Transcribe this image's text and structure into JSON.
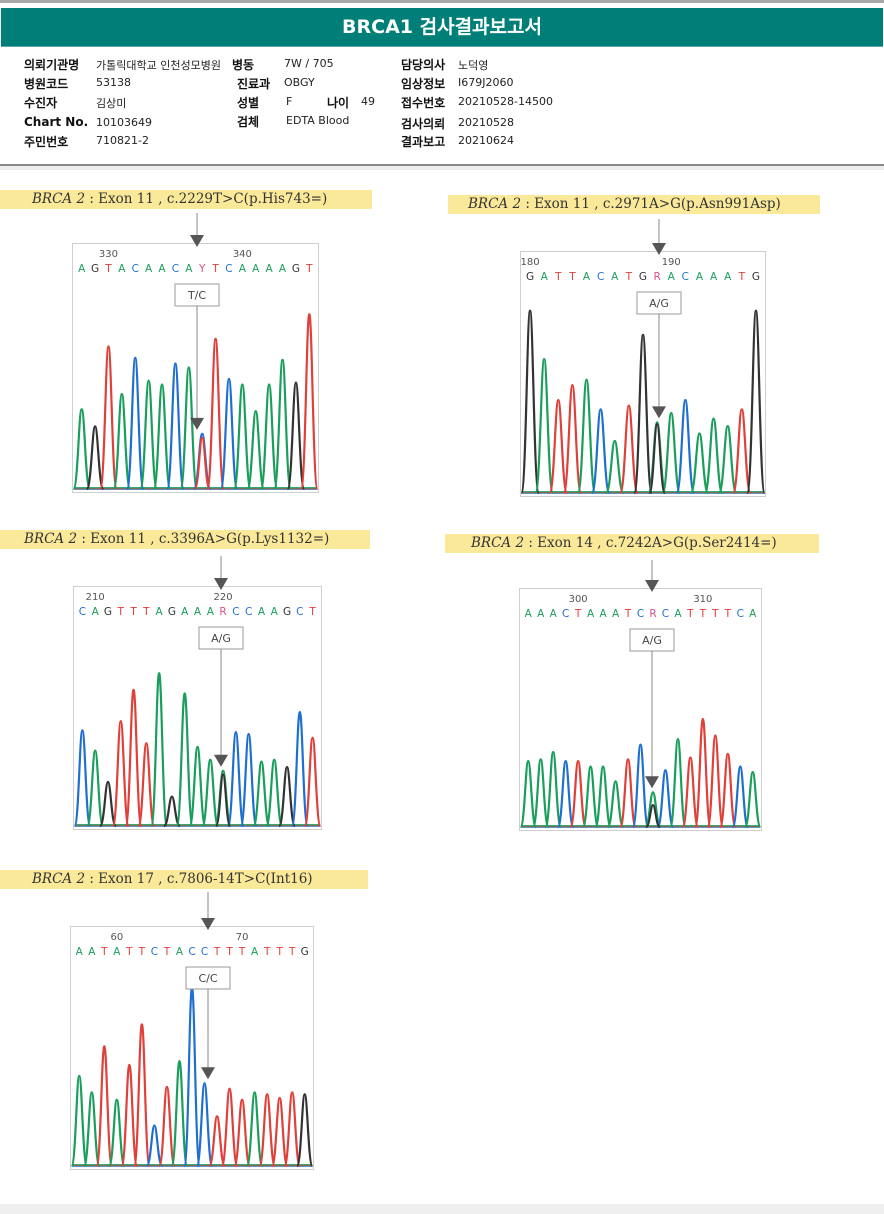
{
  "report": {
    "title": "BRCA1 검사결과보고서",
    "fields": {
      "institution": {
        "label": "의뢰기관명",
        "value": "가톨릭대학교 인천성모병원"
      },
      "ward": {
        "label": "병동",
        "value": "7W / 705"
      },
      "doctor": {
        "label": "담당의사",
        "value": "노덕영"
      },
      "hospital_code": {
        "label": "병원코드",
        "value": "53138"
      },
      "department": {
        "label": "진료과",
        "value": "OBGY"
      },
      "clinical_info": {
        "label": "임상정보",
        "value": "I679J2060"
      },
      "patient": {
        "label": "수진자",
        "value": "김상미"
      },
      "sex": {
        "label": "성별",
        "value": "F"
      },
      "age": {
        "label": "나이",
        "value": "49"
      },
      "receipt_no": {
        "label": "접수번호",
        "value": "20210528-14500"
      },
      "chart_no": {
        "label": "Chart No.",
        "value": "10103649"
      },
      "specimen": {
        "label": "검체",
        "value": "EDTA Blood"
      },
      "test_request": {
        "label": "검사의뢰",
        "value": "20210528"
      },
      "resident_no": {
        "label": "주민번호",
        "value": "710821-2"
      },
      "result_report": {
        "label": "결과보고",
        "value": "20210624"
      }
    }
  },
  "colors": {
    "title_bar": "#007f78",
    "label_highlight": "#fbe99a",
    "A": "#1a9e5c",
    "C": "#1f6fd1",
    "G": "#333333",
    "T": "#e0403a",
    "ambig": "#d9508a"
  },
  "chart_data": [
    {
      "type": "chromatogram",
      "title_gene": "BRCA 2",
      "title_rest": ": Exon 11 , c.2229T>C(p.His743=)",
      "genotype": "T/C",
      "pos_ticks": [
        {
          "label": "330",
          "index": 2
        },
        {
          "label": "340",
          "index": 12
        }
      ],
      "sequence": [
        "A",
        "G",
        "T",
        "A",
        "C",
        "A",
        "A",
        "C",
        "A",
        "Y",
        "T",
        "C",
        "A",
        "A",
        "A",
        "A",
        "G",
        "T"
      ],
      "variant_index": 9,
      "peaks": [
        {
          "base": "A",
          "h": 0.42
        },
        {
          "base": "G",
          "h": 0.33
        },
        {
          "base": "T",
          "h": 0.75
        },
        {
          "base": "A",
          "h": 0.5
        },
        {
          "base": "C",
          "h": 0.69
        },
        {
          "base": "A",
          "h": 0.57
        },
        {
          "base": "A",
          "h": 0.55
        },
        {
          "base": "C",
          "h": 0.66
        },
        {
          "base": "A",
          "h": 0.64
        },
        {
          "base": "C",
          "h": 0.29
        },
        {
          "base": "T",
          "h": 0.79
        },
        {
          "base": "C",
          "h": 0.58
        },
        {
          "base": "A",
          "h": 0.55
        },
        {
          "base": "A",
          "h": 0.41
        },
        {
          "base": "A",
          "h": 0.55
        },
        {
          "base": "A",
          "h": 0.68
        },
        {
          "base": "G",
          "h": 0.56
        },
        {
          "base": "T",
          "h": 0.92
        }
      ]
    },
    {
      "type": "chromatogram",
      "title_gene": "BRCA 2",
      "title_rest": ": Exon 11 , c.2971A>G(p.Asn991Asp)",
      "genotype": "A/G",
      "pos_ticks": [
        {
          "label": "180",
          "index": 0
        },
        {
          "label": "190",
          "index": 10
        }
      ],
      "sequence": [
        "G",
        "A",
        "T",
        "T",
        "A",
        "C",
        "A",
        "T",
        "G",
        "R",
        "A",
        "C",
        "A",
        "A",
        "A",
        "T",
        "G"
      ],
      "variant_index": 9,
      "peaks": [
        {
          "base": "G",
          "h": 0.98
        },
        {
          "base": "A",
          "h": 0.72
        },
        {
          "base": "T",
          "h": 0.5
        },
        {
          "base": "T",
          "h": 0.58
        },
        {
          "base": "A",
          "h": 0.61
        },
        {
          "base": "C",
          "h": 0.45
        },
        {
          "base": "A",
          "h": 0.28
        },
        {
          "base": "T",
          "h": 0.47
        },
        {
          "base": "G",
          "h": 0.85
        },
        {
          "base": "A",
          "h": 0.38
        },
        {
          "base": "A",
          "h": 0.43
        },
        {
          "base": "C",
          "h": 0.5
        },
        {
          "base": "A",
          "h": 0.32
        },
        {
          "base": "A",
          "h": 0.4
        },
        {
          "base": "A",
          "h": 0.36
        },
        {
          "base": "T",
          "h": 0.45
        },
        {
          "base": "G",
          "h": 0.98
        }
      ]
    },
    {
      "type": "chromatogram",
      "title_gene": "BRCA 2",
      "title_rest": ": Exon 11 , c.3396A>G(p.Lys1132=)",
      "genotype": "A/G",
      "pos_ticks": [
        {
          "label": "210",
          "index": 1
        },
        {
          "label": "220",
          "index": 11
        }
      ],
      "sequence": [
        "C",
        "A",
        "G",
        "T",
        "T",
        "T",
        "A",
        "G",
        "A",
        "A",
        "A",
        "R",
        "C",
        "C",
        "A",
        "A",
        "G",
        "C",
        "T"
      ],
      "variant_index": 11,
      "peaks": [
        {
          "base": "C",
          "h": 0.52
        },
        {
          "base": "A",
          "h": 0.41
        },
        {
          "base": "G",
          "h": 0.24
        },
        {
          "base": "T",
          "h": 0.57
        },
        {
          "base": "T",
          "h": 0.74
        },
        {
          "base": "T",
          "h": 0.45
        },
        {
          "base": "A",
          "h": 0.83
        },
        {
          "base": "G",
          "h": 0.16
        },
        {
          "base": "A",
          "h": 0.72
        },
        {
          "base": "A",
          "h": 0.43
        },
        {
          "base": "A",
          "h": 0.36
        },
        {
          "base": "A",
          "h": 0.3
        },
        {
          "base": "C",
          "h": 0.51
        },
        {
          "base": "C",
          "h": 0.5
        },
        {
          "base": "A",
          "h": 0.35
        },
        {
          "base": "A",
          "h": 0.36
        },
        {
          "base": "G",
          "h": 0.32
        },
        {
          "base": "C",
          "h": 0.62
        },
        {
          "base": "T",
          "h": 0.48
        }
      ]
    },
    {
      "type": "chromatogram",
      "title_gene": "BRCA 2",
      "title_rest": ": Exon 14 , c.7242A>G(p.Ser2414=)",
      "genotype": "A/G",
      "pos_ticks": [
        {
          "label": "300",
          "index": 4
        },
        {
          "label": "310",
          "index": 14
        }
      ],
      "sequence": [
        "A",
        "A",
        "A",
        "C",
        "T",
        "A",
        "A",
        "A",
        "T",
        "C",
        "R",
        "C",
        "A",
        "T",
        "T",
        "T",
        "T",
        "C",
        "A"
      ],
      "variant_index": 10,
      "peaks": [
        {
          "base": "A",
          "h": 0.36
        },
        {
          "base": "A",
          "h": 0.37
        },
        {
          "base": "A",
          "h": 0.41
        },
        {
          "base": "C",
          "h": 0.36
        },
        {
          "base": "T",
          "h": 0.36
        },
        {
          "base": "A",
          "h": 0.33
        },
        {
          "base": "A",
          "h": 0.33
        },
        {
          "base": "A",
          "h": 0.25
        },
        {
          "base": "T",
          "h": 0.37
        },
        {
          "base": "C",
          "h": 0.45
        },
        {
          "base": "A",
          "h": 0.19
        },
        {
          "base": "C",
          "h": 0.31
        },
        {
          "base": "A",
          "h": 0.48
        },
        {
          "base": "T",
          "h": 0.38
        },
        {
          "base": "T",
          "h": 0.59
        },
        {
          "base": "T",
          "h": 0.5
        },
        {
          "base": "T",
          "h": 0.4
        },
        {
          "base": "C",
          "h": 0.33
        },
        {
          "base": "A",
          "h": 0.3
        }
      ]
    },
    {
      "type": "chromatogram",
      "title_gene": "BRCA 2",
      "title_rest": ": Exon 17 , c.7806-14T>C(Int16)",
      "genotype": "C/C",
      "pos_ticks": [
        {
          "label": "60",
          "index": 3
        },
        {
          "label": "70",
          "index": 13
        }
      ],
      "sequence": [
        "A",
        "A",
        "T",
        "A",
        "T",
        "T",
        "C",
        "T",
        "A",
        "C",
        "C",
        "T",
        "T",
        "T",
        "A",
        "T",
        "T",
        "T",
        "G"
      ],
      "variant_index": 10,
      "peaks": [
        {
          "base": "A",
          "h": 0.49
        },
        {
          "base": "A",
          "h": 0.4
        },
        {
          "base": "T",
          "h": 0.65
        },
        {
          "base": "A",
          "h": 0.36
        },
        {
          "base": "T",
          "h": 0.55
        },
        {
          "base": "T",
          "h": 0.77
        },
        {
          "base": "C",
          "h": 0.22
        },
        {
          "base": "T",
          "h": 0.43
        },
        {
          "base": "A",
          "h": 0.57
        },
        {
          "base": "C",
          "h": 0.97
        },
        {
          "base": "C",
          "h": 0.45
        },
        {
          "base": "T",
          "h": 0.27
        },
        {
          "base": "T",
          "h": 0.42
        },
        {
          "base": "T",
          "h": 0.36
        },
        {
          "base": "A",
          "h": 0.4
        },
        {
          "base": "T",
          "h": 0.39
        },
        {
          "base": "T",
          "h": 0.37
        },
        {
          "base": "T",
          "h": 0.4
        },
        {
          "base": "G",
          "h": 0.39
        }
      ]
    }
  ]
}
